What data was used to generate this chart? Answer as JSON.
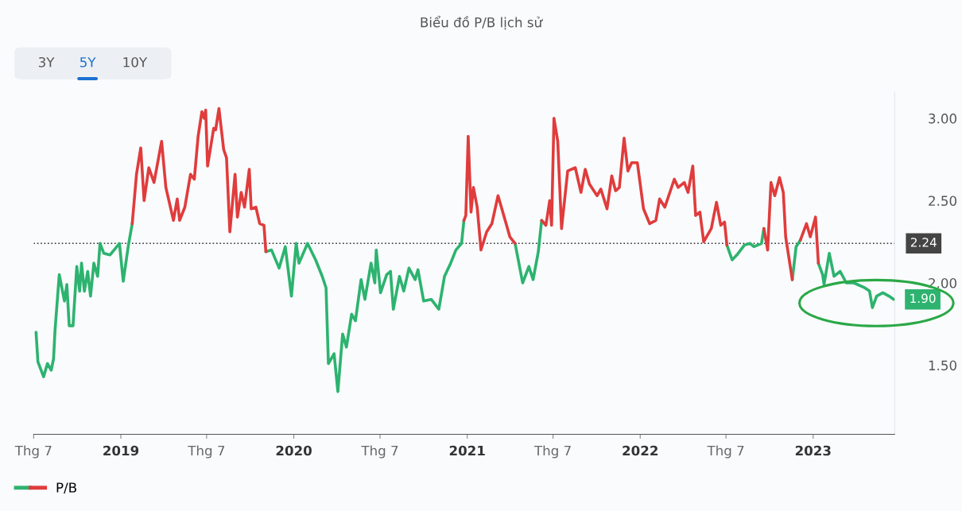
{
  "chart_data": {
    "type": "line",
    "title": "Biểu đồ P/B lịch sử",
    "annotations": [
      "3Y",
      "5Y",
      "10Y"
    ],
    "x": [
      "2018-07-06",
      "2018-07-10",
      "2018-07-22",
      "2018-07-30",
      "2018-08-07",
      "2018-08-12",
      "2018-08-15",
      "2018-08-24",
      "2018-09-04",
      "2018-09-09",
      "2018-09-14",
      "2018-09-22",
      "2018-09-30",
      "2018-10-06",
      "2018-10-10",
      "2018-10-16",
      "2018-10-23",
      "2018-10-29",
      "2018-11-05",
      "2018-11-13",
      "2018-11-18",
      "2018-11-26",
      "2018-12-09",
      "2018-12-29",
      "2019-01-06",
      "2019-01-17",
      "2019-01-25",
      "2019-02-03",
      "2019-02-12",
      "2019-02-19",
      "2019-03-01",
      "2019-03-12",
      "2019-03-28",
      "2019-04-06",
      "2019-04-22",
      "2019-04-30",
      "2019-05-05",
      "2019-05-16",
      "2019-05-28",
      "2019-06-05",
      "2019-06-13",
      "2019-06-21",
      "2019-06-26",
      "2019-06-29",
      "2019-07-03",
      "2019-07-16",
      "2019-07-20",
      "2019-07-27",
      "2019-08-06",
      "2019-08-12",
      "2019-08-19",
      "2019-08-30",
      "2019-09-04",
      "2019-09-12",
      "2019-09-19",
      "2019-09-29",
      "2019-10-03",
      "2019-10-13",
      "2019-10-21",
      "2019-10-30",
      "2019-11-03",
      "2019-11-15",
      "2019-12-01",
      "2019-12-14",
      "2019-12-27",
      "2020-01-06",
      "2020-01-12",
      "2020-01-30",
      "2020-02-16",
      "2020-03-01",
      "2020-03-09",
      "2020-03-14",
      "2020-03-26",
      "2020-04-03",
      "2020-04-13",
      "2020-04-21",
      "2020-05-02",
      "2020-05-10",
      "2020-05-22",
      "2020-05-30",
      "2020-06-12",
      "2020-06-20",
      "2020-06-23",
      "2020-07-02",
      "2020-07-15",
      "2020-07-23",
      "2020-07-29",
      "2020-08-11",
      "2020-08-20",
      "2020-08-31",
      "2020-09-13",
      "2020-09-19",
      "2020-10-01",
      "2020-10-17",
      "2020-11-02",
      "2020-11-14",
      "2020-11-27",
      "2020-12-08",
      "2020-12-20",
      "2020-12-25",
      "2020-12-29",
      "2021-01-03",
      "2021-01-09",
      "2021-01-14",
      "2021-01-22",
      "2021-01-30",
      "2021-02-11",
      "2021-02-22",
      "2021-03-07",
      "2021-03-19",
      "2021-04-01",
      "2021-04-12",
      "2021-04-28",
      "2021-05-11",
      "2021-05-20",
      "2021-05-31",
      "2021-06-07",
      "2021-06-16",
      "2021-06-24",
      "2021-06-28",
      "2021-07-03",
      "2021-07-11",
      "2021-07-19",
      "2021-08-01",
      "2021-08-17",
      "2021-08-29",
      "2021-09-07",
      "2021-09-16",
      "2021-10-02",
      "2021-10-10",
      "2021-10-23",
      "2021-11-02",
      "2021-11-10",
      "2021-11-18",
      "2021-11-28",
      "2021-12-06",
      "2021-12-14",
      "2021-12-26",
      "2022-01-08",
      "2022-01-21",
      "2022-02-03",
      "2022-02-11",
      "2022-02-22",
      "2022-03-14",
      "2022-03-22",
      "2022-04-04",
      "2022-04-12",
      "2022-04-22",
      "2022-04-28",
      "2022-05-07",
      "2022-05-15",
      "2022-05-31",
      "2022-06-11",
      "2022-06-20",
      "2022-06-28",
      "2022-07-03",
      "2022-07-14",
      "2022-07-24",
      "2022-08-09",
      "2022-08-21",
      "2022-08-29",
      "2022-09-14",
      "2022-09-19",
      "2022-09-27",
      "2022-10-04",
      "2022-10-12",
      "2022-10-22",
      "2022-10-30",
      "2022-11-04",
      "2022-11-18",
      "2022-11-26",
      "2022-12-05",
      "2022-12-18",
      "2022-12-26",
      "2023-01-06",
      "2023-01-12",
      "2023-01-21",
      "2023-01-24",
      "2023-02-04",
      "2023-02-14",
      "2023-02-27",
      "2023-03-12",
      "2023-03-28",
      "2023-04-20",
      "2023-04-30",
      "2023-05-06",
      "2023-05-15",
      "2023-05-28",
      "2023-06-10",
      "2023-06-20"
    ],
    "series": [
      {
        "name": "P/B",
        "color": "#2db36f",
        "values": [
          1.7,
          1.52,
          1.43,
          1.51,
          1.47,
          1.54,
          1.71,
          2.05,
          1.89,
          1.99,
          1.74,
          1.74,
          2.1,
          1.95,
          2.12,
          1.95,
          2.07,
          1.92,
          2.12,
          2.04,
          2.24,
          2.18,
          2.17,
          2.24,
          2.01,
          2.23,
          2.36,
          null,
          null,
          null,
          null,
          null,
          null,
          null,
          null,
          null,
          null,
          null,
          null,
          null,
          null,
          null,
          null,
          null,
          null,
          null,
          null,
          null,
          null,
          null,
          null,
          null,
          null,
          null,
          null,
          null,
          null,
          null,
          null,
          null,
          2.19,
          2.2,
          2.09,
          2.22,
          1.92,
          2.24,
          2.12,
          2.24,
          2.14,
          2.04,
          1.97,
          1.51,
          1.57,
          1.34,
          1.69,
          1.61,
          1.81,
          1.77,
          2.02,
          1.9,
          2.12,
          2.0,
          2.2,
          1.94,
          2.05,
          2.07,
          1.84,
          2.04,
          1.95,
          2.09,
          2.02,
          2.08,
          1.89,
          1.9,
          1.84,
          2.04,
          2.12,
          2.2,
          2.24,
          2.38,
          null,
          null,
          null,
          null,
          null,
          null,
          null,
          null,
          null,
          null,
          null,
          2.24,
          2.0,
          2.1,
          2.02,
          2.19,
          2.38,
          null,
          null,
          null,
          null,
          null,
          null,
          null,
          null,
          null,
          null,
          null,
          null,
          null,
          null,
          null,
          null,
          null,
          null,
          null,
          null,
          null,
          null,
          null,
          null,
          null,
          null,
          null,
          null,
          null,
          null,
          null,
          null,
          null,
          null,
          null,
          null,
          null,
          null,
          2.23,
          2.14,
          2.17,
          2.23,
          2.24,
          2.22,
          2.24,
          2.33,
          null,
          null,
          null,
          null,
          null,
          null,
          2.02,
          2.22,
          2.26,
          null,
          null,
          null,
          2.12,
          2.05,
          1.99,
          2.18,
          2.04,
          2.07,
          2.0,
          2.0,
          1.97,
          1.95,
          1.85,
          1.92,
          1.94,
          1.92,
          1.9
        ],
        "value_labels": [
          null,
          null,
          null,
          null,
          null,
          null,
          null,
          null,
          null,
          null,
          null,
          null,
          null,
          null,
          null,
          null,
          null,
          null,
          null,
          null,
          null,
          null,
          null,
          null,
          null,
          null,
          null,
          null,
          null,
          null,
          null,
          null,
          null,
          null,
          null,
          null,
          null,
          null,
          null,
          null,
          null,
          null,
          null,
          null,
          null,
          null,
          null,
          null,
          null,
          null,
          null,
          null,
          null,
          null,
          null,
          null,
          null,
          null,
          null,
          null,
          null,
          null,
          null,
          null,
          null,
          null,
          null,
          null,
          null,
          null,
          null,
          null,
          null,
          null,
          null,
          null,
          null,
          null,
          null,
          null,
          null,
          null,
          null,
          null,
          null,
          null,
          null,
          null,
          null,
          null,
          null,
          null,
          null,
          null,
          null,
          null,
          null,
          null,
          null,
          null,
          null,
          null,
          null,
          null,
          null,
          null,
          null,
          null,
          null,
          null,
          null,
          null,
          null,
          null,
          null,
          null,
          null,
          null,
          null,
          null,
          null,
          null,
          null,
          null,
          null,
          null,
          null,
          null,
          null,
          null,
          null,
          null,
          null,
          null,
          null,
          null,
          null,
          null,
          null,
          null,
          null,
          null,
          null,
          null,
          null,
          null,
          null,
          null,
          null,
          null,
          null,
          null,
          null,
          null,
          null,
          null,
          null,
          null,
          null,
          null,
          null,
          null,
          null,
          null,
          null,
          null,
          null,
          null,
          null,
          null,
          null,
          null,
          null,
          null,
          null,
          null,
          null,
          null,
          null,
          null,
          null,
          null,
          null,
          null,
          null,
          null,
          null,
          null,
          null,
          "1.90"
        ]
      },
      {
        "color": "#e03c3c",
        "values": [
          null,
          null,
          null,
          null,
          null,
          null,
          null,
          null,
          null,
          null,
          null,
          null,
          null,
          null,
          null,
          null,
          null,
          null,
          null,
          null,
          null,
          null,
          null,
          null,
          null,
          null,
          2.36,
          2.66,
          2.82,
          2.5,
          2.7,
          2.61,
          2.86,
          2.58,
          2.38,
          2.51,
          2.38,
          2.46,
          2.66,
          2.63,
          2.89,
          3.04,
          3.0,
          3.05,
          2.71,
          2.94,
          2.93,
          3.06,
          2.81,
          2.76,
          2.31,
          2.66,
          2.4,
          2.55,
          2.46,
          2.69,
          2.45,
          2.46,
          2.36,
          2.35,
          2.19,
          null,
          null,
          null,
          null,
          null,
          null,
          null,
          null,
          null,
          null,
          null,
          null,
          null,
          null,
          null,
          null,
          null,
          null,
          null,
          null,
          null,
          null,
          null,
          null,
          null,
          null,
          null,
          null,
          null,
          null,
          null,
          null,
          null,
          null,
          null,
          null,
          null,
          null,
          2.38,
          2.41,
          2.89,
          2.43,
          2.58,
          2.46,
          2.2,
          2.31,
          2.36,
          2.53,
          2.41,
          2.28,
          2.24,
          null,
          null,
          null,
          null,
          2.38,
          2.35,
          2.5,
          2.35,
          3.0,
          2.86,
          2.33,
          2.68,
          2.7,
          2.55,
          2.69,
          2.6,
          2.53,
          2.57,
          2.45,
          2.65,
          2.56,
          2.58,
          2.88,
          2.68,
          2.73,
          2.73,
          2.45,
          2.36,
          2.38,
          2.51,
          2.46,
          2.63,
          2.58,
          2.61,
          2.55,
          2.71,
          2.41,
          2.43,
          2.25,
          2.33,
          2.49,
          2.35,
          2.37,
          2.23,
          null,
          null,
          null,
          null,
          null,
          null,
          2.33,
          2.2,
          2.61,
          2.53,
          2.64,
          2.55,
          2.28,
          2.02,
          null,
          2.26,
          2.36,
          2.28,
          2.4,
          2.12,
          null,
          null,
          null,
          null,
          null,
          null,
          null,
          null,
          null,
          null,
          null,
          null,
          null,
          null
        ]
      }
    ],
    "ref_lines": [
      {
        "axis": "y",
        "value": 2.24,
        "label": "2.24",
        "color": "#333333",
        "line_style": "dotted"
      }
    ],
    "xlim": [
      "2018-07-01",
      "2023-06-22"
    ],
    "xticks": [
      {
        "value": "2018-07-01",
        "label": "Thg 7"
      },
      {
        "value": "2019-01-01",
        "label": "2019"
      },
      {
        "value": "2019-07-01",
        "label": "Thg 7"
      },
      {
        "value": "2020-01-01",
        "label": "2020"
      },
      {
        "value": "2020-07-01",
        "label": "Thg 7"
      },
      {
        "value": "2021-01-01",
        "label": "2021"
      },
      {
        "value": "2021-07-01",
        "label": "Thg 7"
      },
      {
        "value": "2022-01-01",
        "label": "2022"
      },
      {
        "value": "2022-07-01",
        "label": "Thg 7"
      },
      {
        "value": "2023-01-01",
        "label": "2023"
      }
    ],
    "ylim": [
      1.08,
      3.16
    ],
    "yticks": [
      {
        "value": 1.5,
        "label": "1.50"
      },
      {
        "value": 2.0,
        "label": "2.00"
      },
      {
        "value": 2.5,
        "label": "2.50"
      },
      {
        "value": 3.0,
        "label": "3.00"
      }
    ],
    "grid": false,
    "legend": "bottom left"
  }
}
